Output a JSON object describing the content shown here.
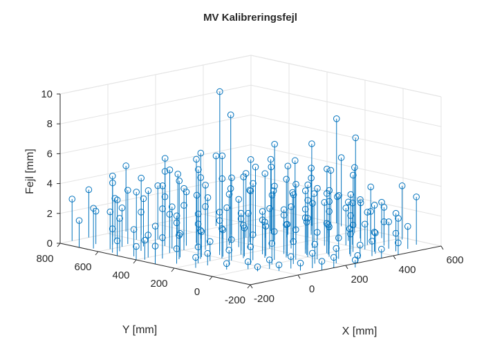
{
  "chart_data": {
    "type": "stem3",
    "title": "MV Kalibreringsfejl",
    "xlabel": "X [mm]",
    "ylabel": "Y [mm]",
    "zlabel": "Fejl [mm]",
    "xlim": [
      -200,
      600
    ],
    "ylim": [
      -200,
      800
    ],
    "zlim": [
      0,
      10
    ],
    "xticks": [
      -200,
      0,
      200,
      400,
      600
    ],
    "yticks": [
      -200,
      0,
      200,
      400,
      600,
      800
    ],
    "zticks": [
      0,
      2,
      4,
      6,
      8,
      10
    ],
    "xtick_labels": [
      "-200",
      "0",
      "200",
      "400",
      "600"
    ],
    "ytick_labels": [
      "-200",
      "0",
      "200",
      "400",
      "600",
      "800"
    ],
    "ztick_labels": [
      "0",
      "2",
      "4",
      "6",
      "8",
      "10"
    ],
    "grid": true,
    "marker": "circle",
    "color": "#0072BD",
    "points": [
      {
        "x": 230,
        "y": 500,
        "z": 9.6
      },
      {
        "x": 260,
        "y": 480,
        "z": 8.0
      },
      {
        "x": 310,
        "y": 620,
        "z": 4.7
      },
      {
        "x": 100,
        "y": 460,
        "z": 5.6
      },
      {
        "x": 300,
        "y": 400,
        "z": 4.6
      },
      {
        "x": 350,
        "y": 380,
        "z": 4.5
      },
      {
        "x": 480,
        "y": 250,
        "z": 4.3
      },
      {
        "x": 540,
        "y": 180,
        "z": 4.4
      },
      {
        "x": 560,
        "y": 120,
        "z": 3.2
      },
      {
        "x": 580,
        "y": -20,
        "z": 3.6
      },
      {
        "x": 560,
        "y": -120,
        "z": 3.2
      },
      {
        "x": 100,
        "y": 600,
        "z": 4.5
      },
      {
        "x": -100,
        "y": 650,
        "z": 4.6
      },
      {
        "x": 150,
        "y": 620,
        "z": 4.0
      },
      {
        "x": 200,
        "y": 400,
        "z": 4.2
      },
      {
        "x": 150,
        "y": 300,
        "z": 3.2
      },
      {
        "x": 350,
        "y": 200,
        "z": 3.4
      },
      {
        "x": 400,
        "y": 150,
        "z": 3.2
      },
      {
        "x": 450,
        "y": 100,
        "z": 2.6
      },
      {
        "x": 300,
        "y": 100,
        "z": 3.0
      },
      {
        "x": 250,
        "y": 150,
        "z": 2.8
      },
      {
        "x": 420,
        "y": 40,
        "z": 2.8
      },
      {
        "x": 480,
        "y": 20,
        "z": 2.1
      },
      {
        "x": 500,
        "y": -100,
        "z": 1.9
      },
      {
        "x": 450,
        "y": -150,
        "z": 1.2
      },
      {
        "x": 350,
        "y": -150,
        "z": 1.0
      },
      {
        "x": 300,
        "y": -100,
        "z": 1.5
      },
      {
        "x": 250,
        "y": -50,
        "z": 2.0
      },
      {
        "x": 200,
        "y": 0,
        "z": 2.6
      },
      {
        "x": 150,
        "y": 50,
        "z": 2.2
      },
      {
        "x": 100,
        "y": 100,
        "z": 2.4
      },
      {
        "x": 50,
        "y": 150,
        "z": 2.2
      },
      {
        "x": 0,
        "y": 200,
        "z": 2.0
      },
      {
        "x": -50,
        "y": 250,
        "z": 1.9
      },
      {
        "x": -100,
        "y": 300,
        "z": 1.6
      },
      {
        "x": -150,
        "y": 400,
        "z": 1.5
      },
      {
        "x": -150,
        "y": 600,
        "z": 2.5
      },
      {
        "x": -200,
        "y": 700,
        "z": 1.8
      },
      {
        "x": -180,
        "y": 650,
        "z": 2.7
      },
      {
        "x": -100,
        "y": 500,
        "z": 2.6
      },
      {
        "x": -50,
        "y": 450,
        "z": 2.8
      },
      {
        "x": 0,
        "y": 400,
        "z": 3.0
      },
      {
        "x": 50,
        "y": 350,
        "z": 2.9
      },
      {
        "x": 100,
        "y": 300,
        "z": 2.8
      },
      {
        "x": 150,
        "y": 250,
        "z": 2.4
      },
      {
        "x": 200,
        "y": 200,
        "z": 2.7
      },
      {
        "x": 250,
        "y": 250,
        "z": 3.3
      },
      {
        "x": 300,
        "y": 300,
        "z": 3.6
      },
      {
        "x": 350,
        "y": 300,
        "z": 3.9
      },
      {
        "x": 400,
        "y": 250,
        "z": 3.5
      },
      {
        "x": 450,
        "y": 200,
        "z": 3.1
      },
      {
        "x": 500,
        "y": 150,
        "z": 2.8
      },
      {
        "x": 520,
        "y": 50,
        "z": 2.3
      },
      {
        "x": 480,
        "y": -50,
        "z": 1.6
      },
      {
        "x": 400,
        "y": -100,
        "z": 1.3
      },
      {
        "x": 380,
        "y": 0,
        "z": 2.2
      },
      {
        "x": 330,
        "y": 50,
        "z": 2.5
      },
      {
        "x": 280,
        "y": 0,
        "z": 2.0
      },
      {
        "x": 230,
        "y": 50,
        "z": 2.4
      },
      {
        "x": 180,
        "y": 100,
        "z": 2.6
      },
      {
        "x": 130,
        "y": 150,
        "z": 2.3
      },
      {
        "x": 80,
        "y": 200,
        "z": 2.4
      },
      {
        "x": 30,
        "y": 250,
        "z": 2.3
      },
      {
        "x": -20,
        "y": 300,
        "z": 2.1
      },
      {
        "x": -70,
        "y": 350,
        "z": 2.2
      },
      {
        "x": -120,
        "y": 400,
        "z": 2.0
      },
      {
        "x": -170,
        "y": 450,
        "z": 1.8
      },
      {
        "x": -150,
        "y": 550,
        "z": 2.2
      },
      {
        "x": -100,
        "y": 600,
        "z": 2.6
      },
      {
        "x": -50,
        "y": 550,
        "z": 3.2
      },
      {
        "x": 0,
        "y": 500,
        "z": 3.3
      },
      {
        "x": 50,
        "y": 450,
        "z": 3.6
      },
      {
        "x": 100,
        "y": 400,
        "z": 3.2
      },
      {
        "x": 150,
        "y": 350,
        "z": 3.4
      },
      {
        "x": 200,
        "y": 300,
        "z": 3.6
      },
      {
        "x": 250,
        "y": 350,
        "z": 3.8
      },
      {
        "x": 300,
        "y": 200,
        "z": 3.3
      },
      {
        "x": 350,
        "y": 100,
        "z": 2.9
      },
      {
        "x": 400,
        "y": 50,
        "z": 2.5
      },
      {
        "x": 450,
        "y": 0,
        "z": 2.2
      },
      {
        "x": 400,
        "y": -50,
        "z": 1.7
      },
      {
        "x": 350,
        "y": -50,
        "z": 1.8
      },
      {
        "x": 300,
        "y": -150,
        "z": 0.9
      },
      {
        "x": 250,
        "y": -100,
        "z": 1.4
      },
      {
        "x": 200,
        "y": -50,
        "z": 1.8
      },
      {
        "x": 150,
        "y": 0,
        "z": 2.0
      },
      {
        "x": 100,
        "y": 50,
        "z": 1.9
      },
      {
        "x": 50,
        "y": 100,
        "z": 1.7
      },
      {
        "x": 0,
        "y": 150,
        "z": 1.4
      },
      {
        "x": -50,
        "y": 200,
        "z": 1.3
      },
      {
        "x": -100,
        "y": 200,
        "z": 1.1
      },
      {
        "x": -150,
        "y": 250,
        "z": 1.0
      },
      {
        "x": -200,
        "y": 300,
        "z": 1.2
      },
      {
        "x": -200,
        "y": 400,
        "z": 0.9
      },
      {
        "x": -200,
        "y": 500,
        "z": 1.0
      },
      {
        "x": -180,
        "y": 550,
        "z": 1.6
      },
      {
        "x": -130,
        "y": 700,
        "z": 2.2
      },
      {
        "x": -50,
        "y": 700,
        "z": 2.8
      },
      {
        "x": 0,
        "y": 650,
        "z": 3.2
      },
      {
        "x": 50,
        "y": 600,
        "z": 3.6
      },
      {
        "x": 100,
        "y": 550,
        "z": 3.9
      },
      {
        "x": 150,
        "y": 500,
        "z": 4.1
      },
      {
        "x": 200,
        "y": 450,
        "z": 4.0
      },
      {
        "x": 250,
        "y": 400,
        "z": 4.1
      },
      {
        "x": 300,
        "y": 350,
        "z": 4.3
      },
      {
        "x": 350,
        "y": 250,
        "z": 3.7
      },
      {
        "x": 400,
        "y": 200,
        "z": 3.4
      },
      {
        "x": 450,
        "y": 150,
        "z": 2.9
      },
      {
        "x": 500,
        "y": 100,
        "z": 2.6
      },
      {
        "x": 550,
        "y": 50,
        "z": 2.4
      },
      {
        "x": 530,
        "y": -50,
        "z": 2.0
      },
      {
        "x": 500,
        "y": -150,
        "z": 1.5
      },
      {
        "x": 420,
        "y": -200,
        "z": 0.8
      },
      {
        "x": 350,
        "y": -200,
        "z": 0.6
      },
      {
        "x": 250,
        "y": -200,
        "z": 0.5
      },
      {
        "x": 200,
        "y": -150,
        "z": 1.0
      },
      {
        "x": 150,
        "y": -100,
        "z": 1.3
      },
      {
        "x": 100,
        "y": -50,
        "z": 1.5
      },
      {
        "x": 50,
        "y": 0,
        "z": 1.4
      },
      {
        "x": 0,
        "y": 50,
        "z": 1.2
      },
      {
        "x": -50,
        "y": 100,
        "z": 1.0
      },
      {
        "x": -100,
        "y": 150,
        "z": 0.8
      },
      {
        "x": -150,
        "y": 150,
        "z": 0.7
      },
      {
        "x": -100,
        "y": 50,
        "z": 0.4
      },
      {
        "x": -50,
        "y": 0,
        "z": 0.5
      },
      {
        "x": 0,
        "y": -50,
        "z": 0.6
      },
      {
        "x": 50,
        "y": -100,
        "z": 0.8
      },
      {
        "x": 100,
        "y": -150,
        "z": 1.0
      },
      {
        "x": 150,
        "y": -200,
        "z": 0.7
      },
      {
        "x": 200,
        "y": -250,
        "z": 0.5
      },
      {
        "x": 100,
        "y": -200,
        "z": 0.6
      },
      {
        "x": 50,
        "y": -150,
        "z": 0.5
      },
      {
        "x": 0,
        "y": -100,
        "z": 0.4
      },
      {
        "x": -50,
        "y": -50,
        "z": 0.3
      },
      {
        "x": 550,
        "y": 200,
        "z": 3.8
      },
      {
        "x": 580,
        "y": 300,
        "z": 4.6
      },
      {
        "x": 600,
        "y": 350,
        "z": 7.0
      },
      {
        "x": 600,
        "y": 250,
        "z": 6.0
      },
      {
        "x": 520,
        "y": 380,
        "z": 5.5
      },
      {
        "x": 420,
        "y": 450,
        "z": 5.6
      },
      {
        "x": 380,
        "y": 330,
        "z": 4.6
      },
      {
        "x": 320,
        "y": 450,
        "z": 4.9
      },
      {
        "x": 280,
        "y": 550,
        "z": 5.0
      },
      {
        "x": 260,
        "y": 400,
        "z": 4.3
      },
      {
        "x": 180,
        "y": 550,
        "z": 4.4
      },
      {
        "x": 120,
        "y": 650,
        "z": 4.2
      },
      {
        "x": 60,
        "y": 700,
        "z": 3.8
      },
      {
        "x": -20,
        "y": 750,
        "z": 3.6
      },
      {
        "x": -80,
        "y": 800,
        "z": 3.2
      },
      {
        "x": -150,
        "y": 800,
        "z": 2.8
      },
      {
        "x": 30,
        "y": 550,
        "z": 3.8
      },
      {
        "x": 80,
        "y": 500,
        "z": 3.6
      },
      {
        "x": 130,
        "y": 450,
        "z": 3.8
      },
      {
        "x": 180,
        "y": 380,
        "z": 3.6
      },
      {
        "x": 220,
        "y": 330,
        "z": 3.5
      },
      {
        "x": 280,
        "y": 280,
        "z": 3.4
      },
      {
        "x": 320,
        "y": 230,
        "z": 3.3
      },
      {
        "x": 370,
        "y": 180,
        "z": 3.2
      },
      {
        "x": 420,
        "y": 120,
        "z": 3.0
      },
      {
        "x": 470,
        "y": 60,
        "z": 2.6
      },
      {
        "x": 520,
        "y": 0,
        "z": 2.3
      },
      {
        "x": 460,
        "y": -100,
        "z": 1.8
      },
      {
        "x": 380,
        "y": -130,
        "z": 1.4
      },
      {
        "x": 320,
        "y": -70,
        "z": 1.7
      },
      {
        "x": 270,
        "y": -20,
        "z": 2.0
      },
      {
        "x": 220,
        "y": 30,
        "z": 2.2
      },
      {
        "x": 170,
        "y": 70,
        "z": 2.1
      },
      {
        "x": 120,
        "y": 120,
        "z": 2.0
      },
      {
        "x": 70,
        "y": 170,
        "z": 1.9
      },
      {
        "x": 20,
        "y": 220,
        "z": 1.8
      },
      {
        "x": -30,
        "y": 270,
        "z": 1.7
      },
      {
        "x": -80,
        "y": 320,
        "z": 1.6
      },
      {
        "x": -130,
        "y": 350,
        "z": 1.4
      },
      {
        "x": -180,
        "y": 380,
        "z": 1.3
      },
      {
        "x": -30,
        "y": 400,
        "z": 2.4
      },
      {
        "x": 20,
        "y": 350,
        "z": 2.5
      },
      {
        "x": 70,
        "y": 300,
        "z": 2.6
      },
      {
        "x": 120,
        "y": 250,
        "z": 2.5
      },
      {
        "x": 170,
        "y": 200,
        "z": 2.6
      },
      {
        "x": 220,
        "y": 150,
        "z": 2.7
      },
      {
        "x": 270,
        "y": 100,
        "z": 2.7
      },
      {
        "x": 320,
        "y": 150,
        "z": 3.0
      },
      {
        "x": 370,
        "y": 100,
        "z": 2.9
      },
      {
        "x": 430,
        "y": 270,
        "z": 3.8
      },
      {
        "x": 470,
        "y": 320,
        "z": 4.2
      },
      {
        "x": 520,
        "y": 280,
        "z": 4.0
      },
      {
        "x": 450,
        "y": 380,
        "z": 4.6
      },
      {
        "x": 380,
        "y": 420,
        "z": 4.8
      },
      {
        "x": 230,
        "y": 600,
        "z": 5.2
      },
      {
        "x": 160,
        "y": 700,
        "z": 4.8
      },
      {
        "x": 60,
        "y": 780,
        "z": 4.4
      },
      {
        "x": -60,
        "y": 620,
        "z": 3.6
      },
      {
        "x": -120,
        "y": 600,
        "z": 3.2
      },
      {
        "x": 10,
        "y": 600,
        "z": 3.4
      },
      {
        "x": 70,
        "y": 420,
        "z": 3.4
      },
      {
        "x": -10,
        "y": 450,
        "z": 2.8
      },
      {
        "x": -60,
        "y": 400,
        "z": 2.6
      }
    ]
  }
}
